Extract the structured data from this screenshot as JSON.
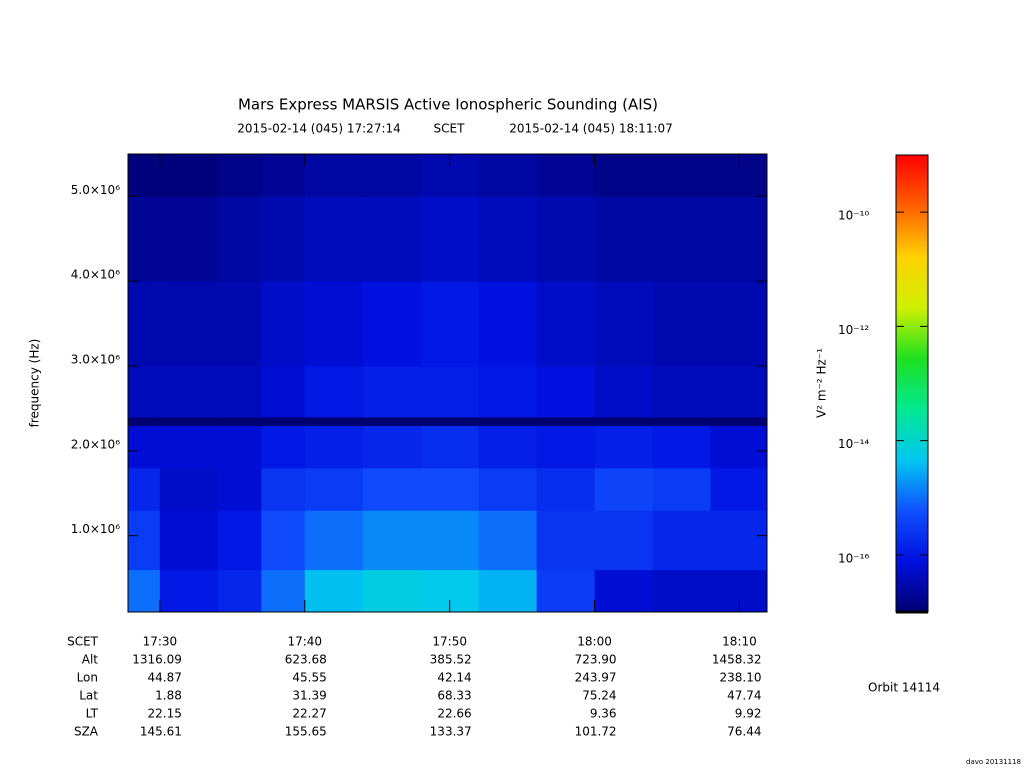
{
  "chart_data": {
    "type": "heatmap",
    "title": "Mars Express MARSIS Active Ionospheric Sounding (AIS)",
    "subtitle": [
      "2015-02-14 (045) 17:27:14",
      "SCET",
      "2015-02-14 (045) 18:11:07"
    ],
    "y_label": "frequency (Hz)",
    "xlim": [
      27.8,
      71.9
    ],
    "xticks": [
      {
        "value": 30,
        "label": "17:30"
      },
      {
        "value": 40,
        "label": "17:40"
      },
      {
        "value": 50,
        "label": "17:50"
      },
      {
        "value": 60,
        "label": "18:00"
      },
      {
        "value": 70,
        "label": "18:10"
      }
    ],
    "ylim": [
      100000,
      5500000
    ],
    "yticks": [
      {
        "value": 1000000,
        "label": "1.0×10⁶"
      },
      {
        "value": 2000000,
        "label": "2.0×10⁶"
      },
      {
        "value": 3000000,
        "label": "3.0×10⁶"
      },
      {
        "value": 4000000,
        "label": "4.0×10⁶"
      },
      {
        "value": 5000000,
        "label": "5.0×10⁶"
      }
    ],
    "x_bins": [
      27.8,
      30,
      34,
      37,
      40,
      44,
      48,
      52,
      56,
      60,
      64,
      68,
      71.9
    ],
    "y_bins": [
      100000,
      600000,
      1300000,
      1800000,
      2300000,
      2400000,
      3000000,
      4000000,
      5000000,
      5500000
    ],
    "z": [
      [
        -15,
        -16,
        -15.8,
        -15,
        -14.4,
        -14.2,
        -14.3,
        -14.5,
        -15.5,
        -16.2,
        -16.3,
        -16.3
      ],
      [
        -15.5,
        -16.2,
        -16,
        -15.3,
        -15,
        -14.8,
        -14.8,
        -15,
        -15.6,
        -15.6,
        -15.8,
        -15.8
      ],
      [
        -15.8,
        -16.3,
        -16.2,
        -15.6,
        -15.5,
        -15.3,
        -15.3,
        -15.5,
        -15.7,
        -15.4,
        -15.5,
        -16
      ],
      [
        -16.2,
        -16.2,
        -16.2,
        -16,
        -15.9,
        -15.8,
        -15.7,
        -15.9,
        -16,
        -15.9,
        -16,
        -16.2
      ],
      [
        -17,
        -17,
        -17,
        -17,
        -17,
        -17,
        -17,
        -17,
        -17,
        -17,
        -17,
        -17
      ],
      [
        -16.4,
        -16.4,
        -16.4,
        -16.2,
        -16,
        -15.9,
        -15.9,
        -16,
        -16.1,
        -16.3,
        -16.4,
        -16.4
      ],
      [
        -16.5,
        -16.5,
        -16.5,
        -16.3,
        -16.2,
        -16.1,
        -16,
        -16.1,
        -16.3,
        -16.4,
        -16.5,
        -16.5
      ],
      [
        -16.7,
        -16.7,
        -16.6,
        -16.5,
        -16.4,
        -16.4,
        -16.3,
        -16.4,
        -16.5,
        -16.6,
        -16.6,
        -16.6
      ],
      [
        -16.9,
        -16.9,
        -16.8,
        -16.7,
        -16.6,
        -16.6,
        -16.5,
        -16.6,
        -16.7,
        -16.8,
        -16.8,
        -16.8
      ]
    ],
    "zlim": [
      -17,
      -9
    ],
    "zticks": [
      {
        "value": -16,
        "label": "10⁻¹⁶"
      },
      {
        "value": -14,
        "label": "10⁻¹⁴"
      },
      {
        "value": -12,
        "label": "10⁻¹²"
      },
      {
        "value": -10,
        "label": "10⁻¹⁰"
      }
    ],
    "z_label": "V² m⁻² Hz⁻¹",
    "colormap": [
      "#000070",
      "#0010e0",
      "#1050ff",
      "#00c8f0",
      "#00e890",
      "#20e020",
      "#d0f000",
      "#ffd000",
      "#ff6000",
      "#ff0000"
    ],
    "ephemeris": {
      "labels": [
        "SCET",
        "Alt",
        "Lon",
        "Lat",
        "LT",
        "SZA"
      ],
      "rows": [
        [
          "1316.09",
          "623.68",
          "385.52",
          "723.90",
          "1458.32"
        ],
        [
          "44.87",
          "45.55",
          "42.14",
          "243.97",
          "238.10"
        ],
        [
          "1.88",
          "31.39",
          "68.33",
          "75.24",
          "47.74"
        ],
        [
          "22.15",
          "22.27",
          "22.66",
          "9.36",
          "9.92"
        ],
        [
          "145.61",
          "155.65",
          "133.37",
          "101.72",
          "76.44"
        ]
      ]
    },
    "orbit": "Orbit 14114",
    "footer": "davo 20131118"
  }
}
